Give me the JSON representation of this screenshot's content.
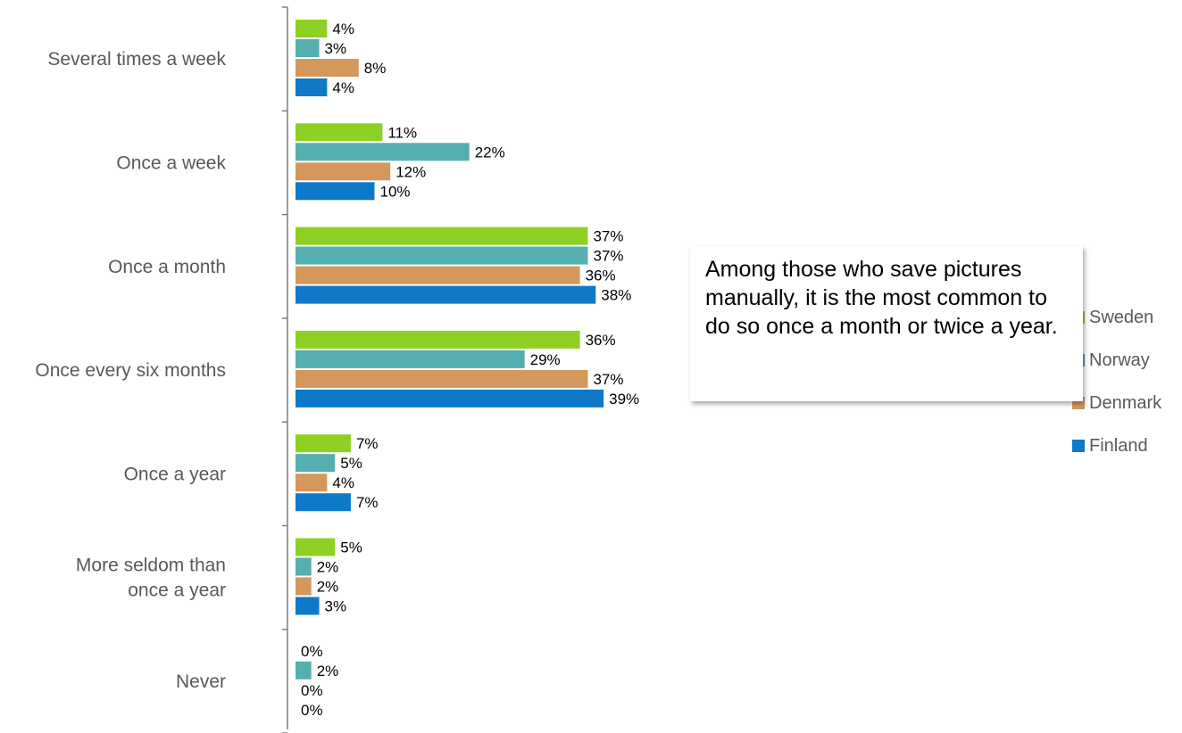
{
  "chart_data": {
    "type": "bar",
    "orientation": "horizontal",
    "categories": [
      "Several times a week",
      "Once a week",
      "Once a month",
      "Once every six months",
      "Once a year",
      "More seldom than once a year",
      "Never"
    ],
    "series": [
      {
        "name": "Sweden",
        "color": "#8ED024",
        "values": [
          4,
          11,
          37,
          36,
          7,
          5,
          0
        ]
      },
      {
        "name": "Norway",
        "color": "#55AEAF",
        "values": [
          3,
          22,
          37,
          29,
          5,
          2,
          2
        ]
      },
      {
        "name": "Denmark",
        "color": "#D4975C",
        "values": [
          8,
          12,
          36,
          37,
          4,
          2,
          0
        ]
      },
      {
        "name": "Finland",
        "color": "#0F79C9",
        "values": [
          4,
          10,
          38,
          39,
          7,
          3,
          0
        ]
      }
    ],
    "value_suffix": "%",
    "legend_position": "right",
    "grid": false
  },
  "callout": {
    "text": "Among those who save pictures manually, it is the most common to do so once a month or twice a year."
  }
}
